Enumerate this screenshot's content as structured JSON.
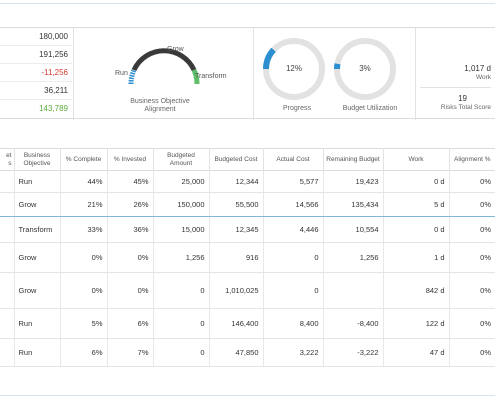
{
  "summary": {
    "financials": [
      {
        "value": "180,000",
        "tone": "normal"
      },
      {
        "value": "191,256",
        "tone": "normal"
      },
      {
        "value": "-11,256",
        "tone": "negative"
      },
      {
        "value": "36,211",
        "tone": "normal"
      },
      {
        "value": "143,789",
        "tone": "positive"
      }
    ],
    "alignment": {
      "caption": "Business Objective Alignment",
      "labels": {
        "run": "Run",
        "grow": "Grow",
        "transform": "Transform"
      }
    },
    "progress": {
      "value_label": "12%",
      "fraction": 0.12,
      "caption": "Progress"
    },
    "budget_utilization": {
      "value_label": "3%",
      "fraction": 0.03,
      "caption": "Budget Utilization"
    },
    "kpis": [
      {
        "value": "1,017 d",
        "label": "Work"
      },
      {
        "value": "19",
        "label": "Risks Total Score"
      }
    ]
  },
  "colors": {
    "accent_blue": "#2c8fd0",
    "gauge_dark": "#3a3a3a",
    "gauge_green": "#5fbe6a",
    "negative": "#d43a2f",
    "positive": "#5fae3c",
    "ring_grey": "#e2e2e2"
  },
  "table": {
    "headers": [
      "et s",
      "Business Objective",
      "% Complete",
      "% Invested",
      "Budgeted Amount",
      "Budgeted Cost",
      "Actual Cost",
      "Remaining Budget",
      "Work",
      "Alignment %"
    ],
    "rows": [
      {
        "objective": "Run",
        "complete": "44%",
        "invested": "45%",
        "amount": "25,000",
        "cost": "12,344",
        "actual": "5,577",
        "remaining": "19,423",
        "work": "0 d",
        "alignment": "0%"
      },
      {
        "objective": "Grow",
        "complete": "21%",
        "invested": "26%",
        "amount": "150,000",
        "cost": "55,500",
        "actual": "14,566",
        "remaining": "135,434",
        "work": "5 d",
        "alignment": "0%"
      },
      {
        "objective": "Transform",
        "complete": "33%",
        "invested": "36%",
        "amount": "15,000",
        "cost": "12,345",
        "actual": "4,446",
        "remaining": "10,554",
        "work": "0 d",
        "alignment": "0%"
      },
      {
        "objective": "Grow",
        "complete": "0%",
        "invested": "0%",
        "amount": "1,256",
        "cost": "916",
        "actual": "0",
        "remaining": "1,256",
        "work": "1 d",
        "alignment": "0%"
      },
      {
        "objective": "Grow",
        "complete": "0%",
        "invested": "0%",
        "amount": "0",
        "cost": "1,010,025",
        "actual": "0",
        "remaining": "",
        "work": "842 d",
        "alignment": "0%"
      },
      {
        "objective": "Run",
        "complete": "5%",
        "invested": "6%",
        "amount": "0",
        "cost": "146,400",
        "actual": "8,400",
        "remaining": "-8,400",
        "work": "122 d",
        "alignment": "0%"
      },
      {
        "objective": "Run",
        "complete": "6%",
        "invested": "7%",
        "amount": "0",
        "cost": "47,850",
        "actual": "3,222",
        "remaining": "-3,222",
        "work": "47 d",
        "alignment": "0%"
      }
    ]
  }
}
